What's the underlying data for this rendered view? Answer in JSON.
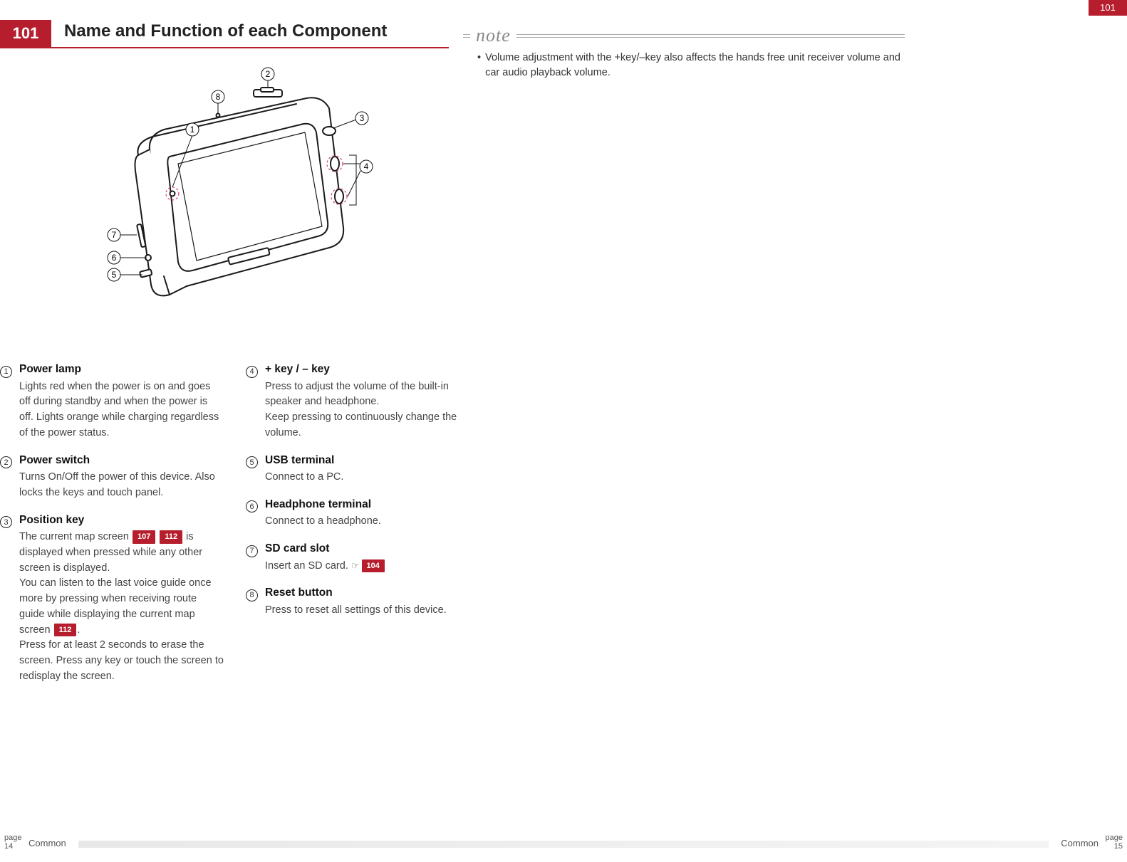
{
  "header": {
    "badge": "101",
    "title": "Name and Function of each Component",
    "corner": "101"
  },
  "note": {
    "label": "note",
    "bullet_dot": "•",
    "text": "Volume adjustment with the +key/–key also affects the hands free unit receiver volume and car audio playback volume."
  },
  "refs": {
    "r107": "107",
    "r112": "112",
    "r104": "104"
  },
  "hand_glyph": "☞",
  "items_col1": [
    {
      "num": "1",
      "title": "Power lamp",
      "body_html": "Lights red when the power is on and goes off during standby and when the power is off. Lights orange while charging regardless of the power status."
    },
    {
      "num": "2",
      "title": "Power switch",
      "body_html": "Turns On/Off the power of this device. Also locks the keys and touch panel."
    },
    {
      "num": "3",
      "title": "Position key",
      "body_html": "The current map screen <span class=\"ref\" data-name=\"page-ref\" data-interactable=\"false\">107</span> <span class=\"ref\" data-name=\"page-ref\" data-interactable=\"false\">112</span> is displayed when pressed while any other screen is displayed.<br>You can listen to the last voice guide once more by pressing when receiving route guide while displaying the current map screen <span class=\"ref\" data-name=\"page-ref\" data-interactable=\"false\">112</span>.<br>Press for at least 2 seconds to erase the screen. Press any key or touch the screen to redisplay the screen."
    }
  ],
  "items_col2": [
    {
      "num": "4",
      "title": "+ key / – key",
      "body_html": "Press to adjust the volume of the built-in speaker and headphone.<br>Keep pressing to continuously change the volume."
    },
    {
      "num": "5",
      "title": "USB terminal",
      "body_html": "Connect to a PC."
    },
    {
      "num": "6",
      "title": "Headphone terminal",
      "body_html": "Connect to a headphone."
    },
    {
      "num": "7",
      "title": "SD card slot",
      "body_html": "Insert an SD card. <span class=\"hand\" data-name=\"hand-icon\" data-interactable=\"false\">☞</span><span class=\"ref\" data-name=\"page-ref\" data-interactable=\"false\">104</span>"
    },
    {
      "num": "8",
      "title": "Reset button",
      "body_html": "Press to reset all settings of this device."
    }
  ],
  "diagram": {
    "callouts": [
      "1",
      "2",
      "3",
      "4",
      "5",
      "6",
      "7",
      "8"
    ],
    "stroke": "#1a1a1a",
    "leader": "#111",
    "dash": "#d9488e"
  },
  "footer": {
    "page_word": "page",
    "left_num": "14",
    "right_num": "15",
    "section": "Common"
  }
}
